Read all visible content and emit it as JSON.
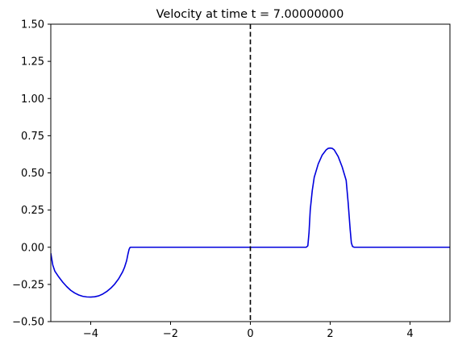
{
  "chart_data": {
    "type": "line",
    "title": "Velocity at time t =     7.00000000",
    "xlabel": "",
    "ylabel": "",
    "xlim": [
      -5,
      5
    ],
    "ylim": [
      -0.5,
      1.5
    ],
    "grid": false,
    "x_ticks": [
      -4,
      -2,
      0,
      2,
      4
    ],
    "x_tick_labels": [
      "−4",
      "−2",
      "0",
      "2",
      "4"
    ],
    "y_ticks": [
      -0.5,
      -0.25,
      0,
      0.25,
      0.5,
      0.75,
      1.0,
      1.25,
      1.5
    ],
    "y_tick_labels": [
      "−0.50",
      "−0.25",
      "0.00",
      "0.25",
      "0.50",
      "0.75",
      "1.00",
      "1.25",
      "1.50"
    ],
    "vertical_line": {
      "x": 0,
      "style": "dashed",
      "color": "#000000"
    },
    "series": [
      {
        "color": "#0000dd",
        "x": [
          -5,
          -4.95,
          -4.9,
          -4.8,
          -4.7,
          -4.6,
          -4.5,
          -4.4,
          -4.3,
          -4.2,
          -4.1,
          -4.0,
          -3.9,
          -3.8,
          -3.7,
          -3.6,
          -3.5,
          -3.4,
          -3.3,
          -3.2,
          -3.15,
          -3.1,
          -3.07,
          -3.04,
          -3.02,
          -3.0,
          -2.98,
          1.4,
          1.44,
          1.47,
          1.5,
          1.55,
          1.6,
          1.7,
          1.8,
          1.9,
          1.95,
          2.0,
          2.05,
          2.1,
          2.2,
          2.3,
          2.4,
          2.45,
          2.5,
          2.53,
          2.56,
          2.6,
          5
        ],
        "y": [
          -0.04,
          -0.12,
          -0.16,
          -0.2,
          -0.235,
          -0.265,
          -0.29,
          -0.308,
          -0.321,
          -0.33,
          -0.334,
          -0.335,
          -0.333,
          -0.327,
          -0.315,
          -0.298,
          -0.276,
          -0.248,
          -0.212,
          -0.165,
          -0.133,
          -0.09,
          -0.05,
          -0.015,
          -0.003,
          0.0,
          0.0,
          0.0,
          0.01,
          0.1,
          0.25,
          0.38,
          0.47,
          0.56,
          0.62,
          0.655,
          0.665,
          0.667,
          0.665,
          0.655,
          0.61,
          0.54,
          0.45,
          0.3,
          0.12,
          0.03,
          0.005,
          0.0,
          0.0
        ]
      }
    ]
  }
}
